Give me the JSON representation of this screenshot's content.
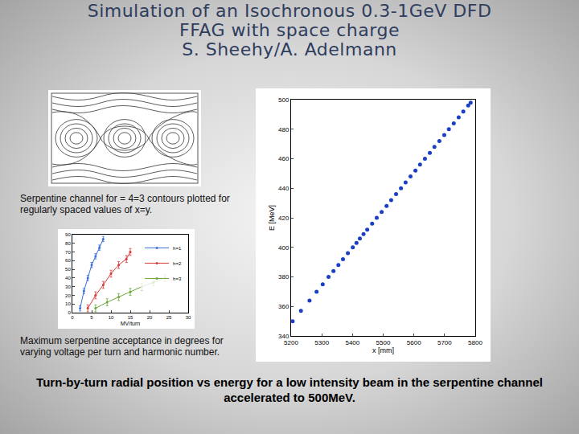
{
  "title": [
    "Simulation of an Isochronous 0.3-1GeV DFD",
    "FFAG with space charge",
    "S. Sheehy/A. Adelmann"
  ],
  "captions": {
    "contours": "Serpentine channel for  = 4=3 contours plotted for regularly spaced values of x=y.",
    "acceptance": "Maximum serpentine acceptance in degrees for varying voltage per turn and harmonic number.",
    "main": "Turn-by-turn radial position vs energy for a low intensity beam in the serpentine channel accelerated to 500MeV."
  },
  "chart_data": [
    {
      "type": "scatter",
      "x_label": "x [mm]",
      "y_label": "E [MeV]",
      "x": [
        5205,
        5232,
        5260,
        5283,
        5303,
        5322,
        5338,
        5354,
        5369,
        5385,
        5401,
        5413,
        5424,
        5436,
        5448,
        5464,
        5479,
        5495,
        5511,
        5526,
        5542,
        5558,
        5573,
        5589,
        5605,
        5620,
        5636,
        5652,
        5667,
        5683,
        5699,
        5714,
        5730,
        5746,
        5761,
        5777,
        5785
      ],
      "values": [
        350,
        357,
        364,
        370,
        375,
        380,
        384,
        388,
        392,
        396,
        400,
        403,
        406,
        409,
        412,
        416,
        420,
        424,
        428,
        432,
        436,
        440,
        444,
        448,
        452,
        456,
        460,
        464,
        468,
        472,
        476,
        480,
        484,
        488,
        492,
        496,
        498
      ],
      "color": "#1a3fc4",
      "marker": "circle",
      "xlim": [
        5200,
        5800
      ],
      "xticks": [
        5200,
        5300,
        5400,
        5500,
        5600,
        5700,
        5800
      ],
      "ylim": [
        340,
        500
      ],
      "yticks": [
        340,
        360,
        380,
        400,
        420,
        440,
        460,
        480,
        500
      ],
      "grid": false
    },
    {
      "type": "line",
      "x_label": "MV/turn",
      "series": [
        {
          "name": "h=1",
          "color": "#3a6fd8",
          "x": [
            2,
            3,
            4,
            5,
            6,
            7,
            8
          ],
          "values": [
            5,
            25,
            40,
            55,
            65,
            75,
            85
          ],
          "errors": [
            3,
            3,
            3,
            3,
            3,
            3,
            3
          ]
        },
        {
          "name": "h=2",
          "color": "#d83a3a",
          "x": [
            4,
            6,
            8,
            10,
            12,
            14,
            15
          ],
          "values": [
            5,
            20,
            32,
            45,
            55,
            62,
            70
          ],
          "errors": [
            4,
            4,
            4,
            4,
            4,
            4,
            4
          ]
        },
        {
          "name": "h=3",
          "color": "#6aa83a",
          "x": [
            6,
            9,
            12,
            15,
            18,
            21,
            24
          ],
          "values": [
            5,
            12,
            18,
            24,
            30,
            35,
            40
          ],
          "errors": [
            4,
            4,
            4,
            4,
            4,
            4,
            4
          ]
        }
      ],
      "marker": "circle",
      "xlim": [
        0,
        30
      ],
      "xticks": [
        0,
        5,
        10,
        15,
        20,
        25,
        30
      ],
      "ylim": [
        0,
        90
      ],
      "yticks": [
        0,
        10,
        20,
        30,
        40,
        50,
        60,
        70,
        80,
        90
      ],
      "legend": "upper right",
      "grid": false
    }
  ]
}
